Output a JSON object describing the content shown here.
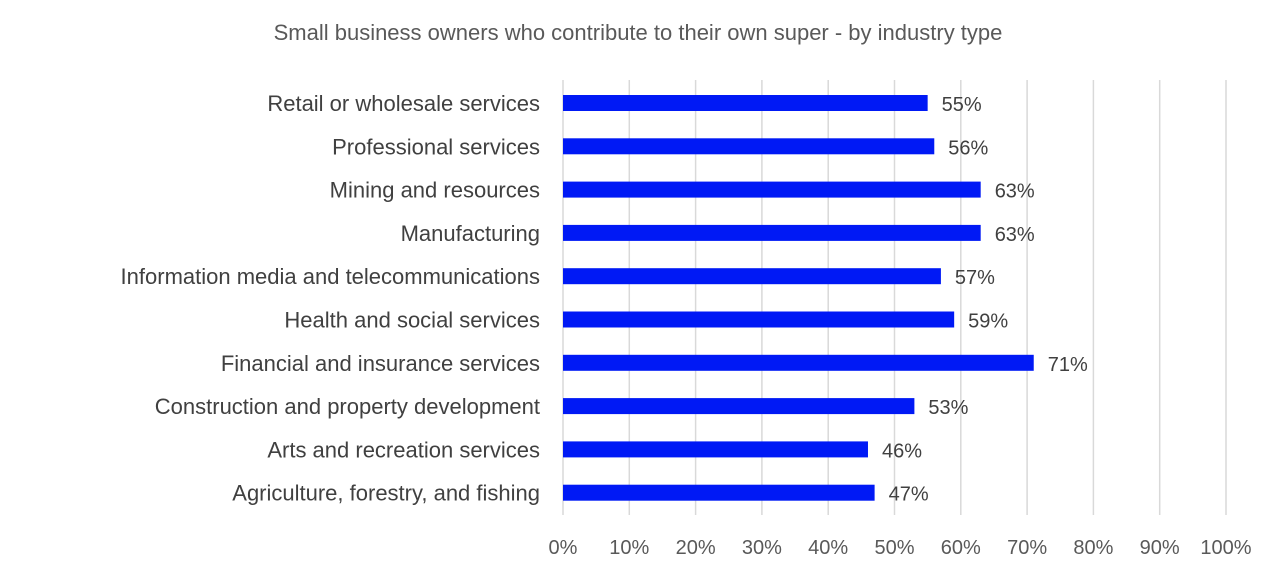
{
  "chart_data": {
    "type": "bar",
    "orientation": "horizontal",
    "title": "Small business owners who contribute to their own super -  by industry type",
    "categories": [
      "Retail or wholesale services",
      "Professional services",
      "Mining and resources",
      "Manufacturing",
      "Information media and telecommunications",
      "Health and social services",
      "Financial and insurance services",
      "Construction and property development",
      "Arts and recreation services",
      "Agriculture, forestry, and fishing"
    ],
    "values": [
      55,
      56,
      63,
      63,
      57,
      59,
      71,
      53,
      46,
      47
    ],
    "data_labels": [
      "55%",
      "56%",
      "63%",
      "63%",
      "57%",
      "59%",
      "71%",
      "53%",
      "46%",
      "47%"
    ],
    "x_ticks": [
      "0%",
      "10%",
      "20%",
      "30%",
      "40%",
      "50%",
      "60%",
      "70%",
      "80%",
      "90%",
      "100%"
    ],
    "xlim": [
      0,
      100
    ],
    "grid": true,
    "legend": "none",
    "bar_color": "#0019f5"
  }
}
